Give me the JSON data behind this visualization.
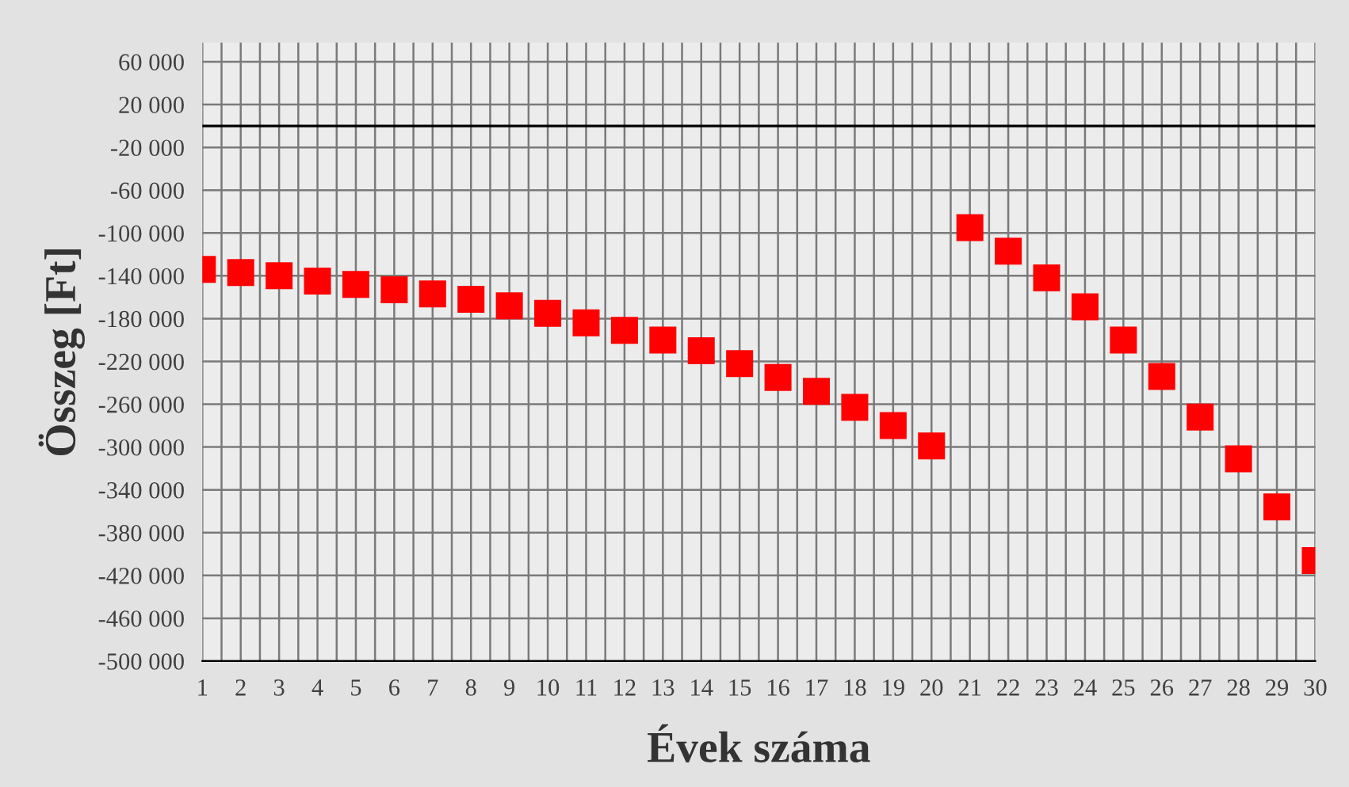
{
  "chart_data": {
    "type": "scatter",
    "xlabel": "Évek száma",
    "ylabel": "Összeg [Ft]",
    "x": [
      1,
      2,
      3,
      4,
      5,
      6,
      7,
      8,
      9,
      10,
      11,
      12,
      13,
      14,
      15,
      16,
      17,
      18,
      19,
      20,
      21,
      22,
      23,
      24,
      25,
      26,
      27,
      28,
      29,
      30
    ],
    "series": [
      {
        "color": "#ff0000",
        "values": [
          -134000,
          -137000,
          -140000,
          -145000,
          -148000,
          -153000,
          -157000,
          -162000,
          -168000,
          -175000,
          -184000,
          -191000,
          -200000,
          -210000,
          -222000,
          -235000,
          -248000,
          -263000,
          -280000,
          -299000,
          -95000,
          -117000,
          -142000,
          -169000,
          -200000,
          -234000,
          -272000,
          -311000,
          -356000,
          -406000
        ]
      }
    ],
    "marker": "square",
    "grid": true,
    "xlim": [
      1,
      30
    ],
    "xticks": [
      1,
      2,
      3,
      4,
      5,
      6,
      7,
      8,
      9,
      10,
      11,
      12,
      13,
      14,
      15,
      16,
      17,
      18,
      19,
      20,
      21,
      22,
      23,
      24,
      25,
      26,
      27,
      28,
      29,
      30
    ],
    "ylim": [
      -500000,
      78000
    ],
    "yticks": [
      {
        "value": 60000,
        "label": "60 000"
      },
      {
        "value": 20000,
        "label": "20 000"
      },
      {
        "value": -20000,
        "label": "-20 000"
      },
      {
        "value": -60000,
        "label": "-60 000"
      },
      {
        "value": -100000,
        "label": "-100 000"
      },
      {
        "value": -140000,
        "label": "-140 000"
      },
      {
        "value": -180000,
        "label": "-180 000"
      },
      {
        "value": -220000,
        "label": "-220 000"
      },
      {
        "value": -260000,
        "label": "-260 000"
      },
      {
        "value": -300000,
        "label": "-300 000"
      },
      {
        "value": -340000,
        "label": "-340 000"
      },
      {
        "value": -380000,
        "label": "-380 000"
      },
      {
        "value": -420000,
        "label": "-420 000"
      },
      {
        "value": -460000,
        "label": "-460 000"
      },
      {
        "value": -500000,
        "label": "-500 000"
      }
    ],
    "ref_lines": [
      {
        "axis": "y",
        "value": 0,
        "color": "#000000"
      }
    ]
  }
}
